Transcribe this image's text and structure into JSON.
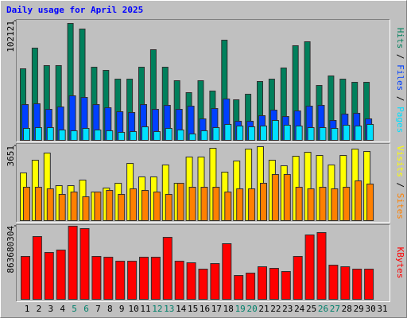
{
  "chart_data": {
    "type": "bar",
    "title": "Daily usage for April 2025",
    "categories": [
      "1",
      "2",
      "3",
      "4",
      "5",
      "6",
      "7",
      "8",
      "9",
      "10",
      "11",
      "12",
      "13",
      "14",
      "15",
      "16",
      "17",
      "18",
      "19",
      "20",
      "21",
      "22",
      "23",
      "24",
      "25",
      "26",
      "27",
      "28",
      "29",
      "30",
      "31"
    ],
    "category_colors": [
      "#000000",
      "#000000",
      "#000000",
      "#000000",
      "#00806a",
      "#00806a",
      "#000000",
      "#000000",
      "#000000",
      "#000000",
      "#000000",
      "#00806a",
      "#00806a",
      "#000000",
      "#000000",
      "#000000",
      "#000000",
      "#000000",
      "#00806a",
      "#00806a",
      "#000000",
      "#000000",
      "#000000",
      "#000000",
      "#000000",
      "#00806a",
      "#00806a",
      "#000000",
      "#000000",
      "#000000",
      "#000000"
    ],
    "panels": [
      {
        "ylim": [
          0,
          102121
        ],
        "yticks": [
          102121
        ],
        "series": [
          {
            "name": "Hits",
            "color": "#00805c",
            "values": [
              61270,
              78970,
              64000,
              64000,
              100080,
              95310,
              62630,
              59910,
              52420,
              52420,
              62630,
              77610,
              62630,
              51060,
              40850,
              51060,
              42210,
              85780,
              34720,
              39490,
              50380,
              52420,
              61950,
              81020,
              84420,
              46980,
              55150,
              52420,
              49700,
              49700,
              null
            ]
          },
          {
            "name": "Files",
            "color": "#0040ff",
            "values": [
              30640,
              31320,
              26550,
              28590,
              38120,
              36760,
              30640,
              27910,
              24510,
              23830,
              30640,
              26550,
              29960,
              26550,
              29270,
              18380,
              27230,
              35400,
              16340,
              16340,
              21100,
              25870,
              20420,
              25190,
              29270,
              29960,
              17020,
              22470,
              23150,
              18380,
              null
            ]
          },
          {
            "name": "Pages",
            "color": "#00e0ff",
            "values": [
              10210,
              10890,
              10890,
              8850,
              8170,
              10210,
              8850,
              8170,
              6810,
              7490,
              11570,
              7490,
              10210,
              8850,
              5450,
              8170,
              10890,
              13620,
              12250,
              11570,
              12250,
              17020,
              12940,
              12250,
              10890,
              10890,
              10210,
              12940,
              12250,
              13620,
              null
            ]
          }
        ]
      },
      {
        "ylim": [
          0,
          3651
        ],
        "yticks": [
          3651
        ],
        "series": [
          {
            "name": "Visits",
            "color": "#ffff00",
            "values": [
              2330,
              2952,
              3301,
              1709,
              1709,
              1981,
              1398,
              1592,
              1825,
              2796,
              2136,
              2136,
              2719,
              1825,
              3107,
              3107,
              3534,
              2369,
              2913,
              3496,
              3612,
              2952,
              2680,
              3146,
              3340,
              3185,
              2719,
              3185,
              3496,
              3379,
              null
            ]
          },
          {
            "name": "Sites",
            "color": "#ff8000",
            "values": [
              1631,
              1631,
              1554,
              1282,
              1398,
              1165,
              1398,
              1476,
              1282,
              1554,
              1476,
              1398,
              1282,
              1825,
              1631,
              1631,
              1631,
              1398,
              1554,
              1554,
              1825,
              2253,
              2253,
              1631,
              1554,
              1631,
              1554,
              1631,
              1942,
              1787,
              null
            ]
          }
        ]
      },
      {
        "ylim": [
          0,
          863680304
        ],
        "yticks": [
          863680304
        ],
        "series": [
          {
            "name": "KBytes",
            "color": "#ff0000",
            "values": [
              506900000,
              741600000,
              553900000,
              582000000,
              863700000,
              835500000,
              506900000,
              497600000,
              450600000,
              450600000,
              497600000,
              497600000,
              732200000,
              450600000,
              431800000,
              356700000,
              422400000,
              657100000,
              281600000,
              309800000,
              384900000,
              366100000,
              328600000,
              506900000,
              760400000,
              788600000,
              403700000,
              384900000,
              356700000,
              356700000,
              null
            ]
          }
        ]
      }
    ]
  }
}
